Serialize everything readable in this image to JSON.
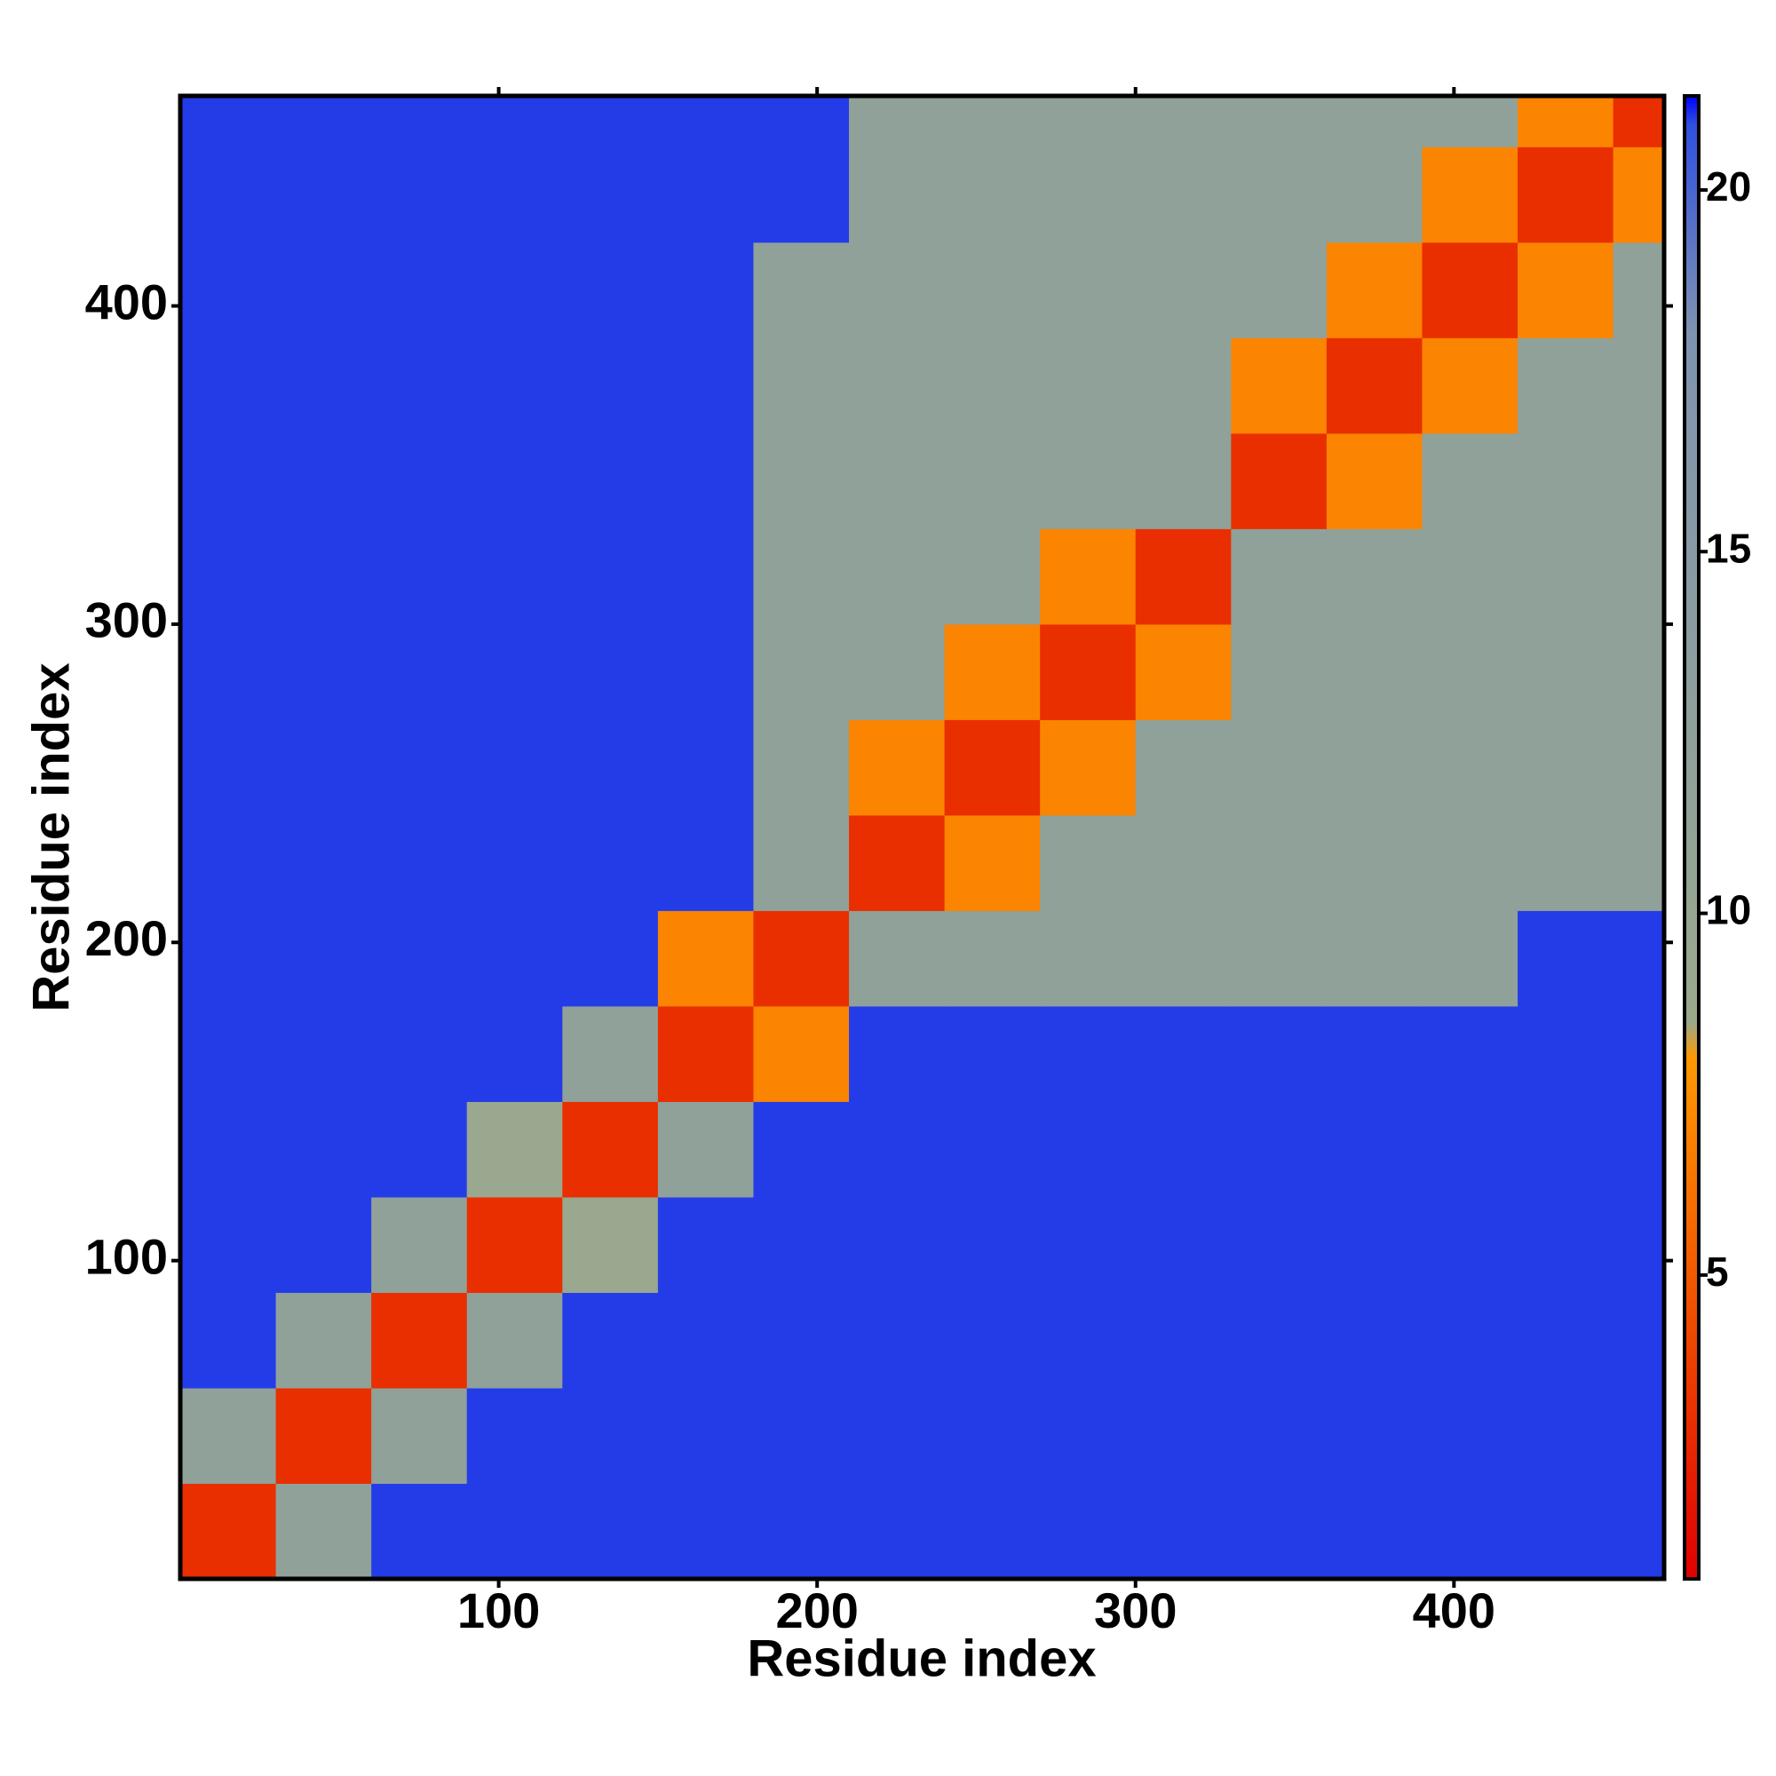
{
  "chart_data": {
    "type": "heatmap",
    "x_label": "Residue index",
    "y_label": "Residue index",
    "edges": [
      0,
      30,
      60,
      90,
      120,
      150,
      180,
      210,
      240,
      270,
      300,
      330,
      360,
      390,
      420,
      450,
      466
    ],
    "z": [
      [
        3,
        12,
        21,
        21,
        21,
        21,
        21,
        21,
        21,
        21,
        21,
        21,
        21,
        21,
        21,
        21
      ],
      [
        12,
        3,
        12,
        21,
        21,
        21,
        21,
        21,
        21,
        21,
        21,
        21,
        21,
        21,
        21,
        21
      ],
      [
        21,
        12,
        3,
        12,
        21,
        21,
        21,
        21,
        21,
        21,
        21,
        21,
        21,
        21,
        21,
        21
      ],
      [
        21,
        21,
        12,
        3,
        9,
        21,
        21,
        21,
        21,
        21,
        21,
        21,
        21,
        21,
        21,
        21
      ],
      [
        21,
        21,
        21,
        9,
        3,
        12,
        21,
        21,
        21,
        21,
        21,
        21,
        21,
        21,
        21,
        21
      ],
      [
        21,
        21,
        21,
        21,
        12,
        3,
        7,
        21,
        21,
        21,
        21,
        21,
        21,
        21,
        21,
        21
      ],
      [
        21,
        21,
        21,
        21,
        21,
        7,
        3,
        12,
        12,
        12,
        12,
        12,
        12,
        12,
        21,
        21
      ],
      [
        21,
        21,
        21,
        21,
        21,
        21,
        12,
        3,
        7,
        12,
        12,
        12,
        12,
        12,
        12,
        12
      ],
      [
        21,
        21,
        21,
        21,
        21,
        21,
        12,
        7,
        3,
        7,
        12,
        12,
        12,
        12,
        12,
        12
      ],
      [
        21,
        21,
        21,
        21,
        21,
        21,
        12,
        12,
        7,
        3,
        7,
        12,
        12,
        12,
        12,
        12
      ],
      [
        21,
        21,
        21,
        21,
        21,
        21,
        12,
        12,
        12,
        7,
        3,
        12,
        12,
        12,
        12,
        12
      ],
      [
        21,
        21,
        21,
        21,
        21,
        21,
        12,
        12,
        12,
        12,
        12,
        3,
        7,
        12,
        12,
        12
      ],
      [
        21,
        21,
        21,
        21,
        21,
        21,
        12,
        12,
        12,
        12,
        12,
        7,
        3,
        7,
        12,
        12
      ],
      [
        21,
        21,
        21,
        21,
        21,
        21,
        12,
        12,
        12,
        12,
        12,
        12,
        7,
        3,
        7,
        12
      ],
      [
        21,
        21,
        21,
        21,
        21,
        21,
        21,
        12,
        12,
        12,
        12,
        12,
        12,
        7,
        3,
        7
      ],
      [
        21,
        21,
        21,
        21,
        21,
        21,
        21,
        12,
        12,
        12,
        12,
        12,
        12,
        12,
        7,
        3
      ]
    ],
    "xlim": [
      0,
      466
    ],
    "ylim": [
      0,
      466
    ],
    "xticks": [
      100,
      200,
      300,
      400
    ],
    "yticks": [
      100,
      200,
      300,
      400
    ],
    "zlim": [
      0.8,
      21.3
    ],
    "zticks": [
      5,
      10,
      15,
      20
    ],
    "colorscale": [
      {
        "value": 0.8,
        "color": "#e00000"
      },
      {
        "value": 8,
        "color": "#ff9900"
      },
      {
        "value": 8.5,
        "color": "#9aa98c"
      },
      {
        "value": 18,
        "color": "#7f93b0"
      },
      {
        "value": 20.9,
        "color": "#3050e0"
      },
      {
        "value": 21.3,
        "color": "#0000ff"
      }
    ]
  }
}
